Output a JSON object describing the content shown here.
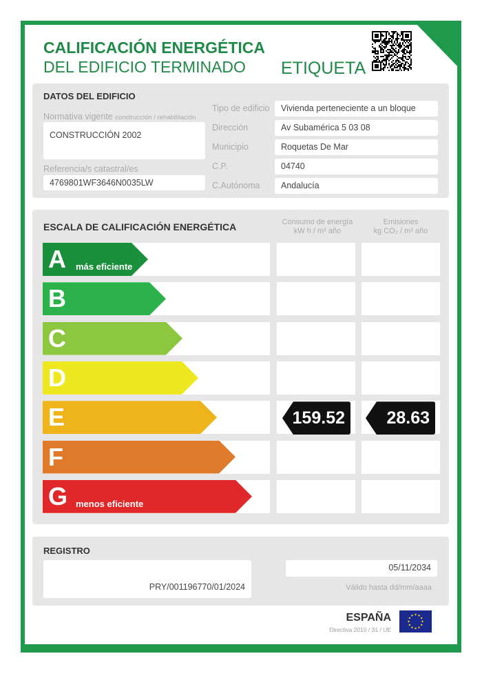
{
  "header": {
    "title1": "CALIFICACIÓN ENERGÉTICA",
    "title2": "DEL EDIFICIO TERMINADO",
    "label": "ETIQUETA",
    "qr_icon": "qr-code-icon"
  },
  "datos": {
    "heading": "DATOS DEL EDIFICIO",
    "normativa_label": "Normativa vigente",
    "normativa_sub": "construcción / rehabilitación",
    "normativa_value": "CONSTRUCCIÓN 2002",
    "ref_label": "Referencia/s catastral/es",
    "ref_value": "4769801WF3646N0035LW",
    "fields": [
      {
        "label": "Tipo de edificio",
        "value": "Vivienda perteneciente a un bloque"
      },
      {
        "label": "Dirección",
        "value": "Av Subamérica 5 03  08"
      },
      {
        "label": "Municipio",
        "value": "Roquetas De Mar"
      },
      {
        "label": "C.P.",
        "value": "04740"
      },
      {
        "label": "C.Autónoma",
        "value": "Andalucía"
      }
    ]
  },
  "escala": {
    "heading": "ESCALA DE CALIFICACIÓN ENERGÉTICA",
    "col1": [
      "Consumo de energía",
      "kW h / m² año"
    ],
    "col2": [
      "Emisiones",
      "kg CO₂ / m² año"
    ],
    "grades": [
      {
        "letter": "A",
        "sub": "más eficiente",
        "color": "#1a8f3c"
      },
      {
        "letter": "B",
        "sub": "",
        "color": "#2bb24a"
      },
      {
        "letter": "C",
        "sub": "",
        "color": "#8dc63f"
      },
      {
        "letter": "D",
        "sub": "",
        "color": "#ede81f"
      },
      {
        "letter": "E",
        "sub": "",
        "color": "#f0b41b"
      },
      {
        "letter": "F",
        "sub": "",
        "color": "#e07a2b"
      },
      {
        "letter": "G",
        "sub": "menos eficiente",
        "color": "#e0282a"
      }
    ],
    "rating": "E",
    "consumo": "159.52",
    "emisiones": "28.63"
  },
  "registro": {
    "heading": "REGISTRO",
    "number": "PRY/001196770/01/2024",
    "date": "05/11/2034",
    "date_label": "Válido hasta dd/mm/aaaa"
  },
  "footer": {
    "country": "ESPAÑA",
    "directive": "Directiva 2010 / 31 / UE",
    "flag_icon": "eu-flag-icon"
  }
}
